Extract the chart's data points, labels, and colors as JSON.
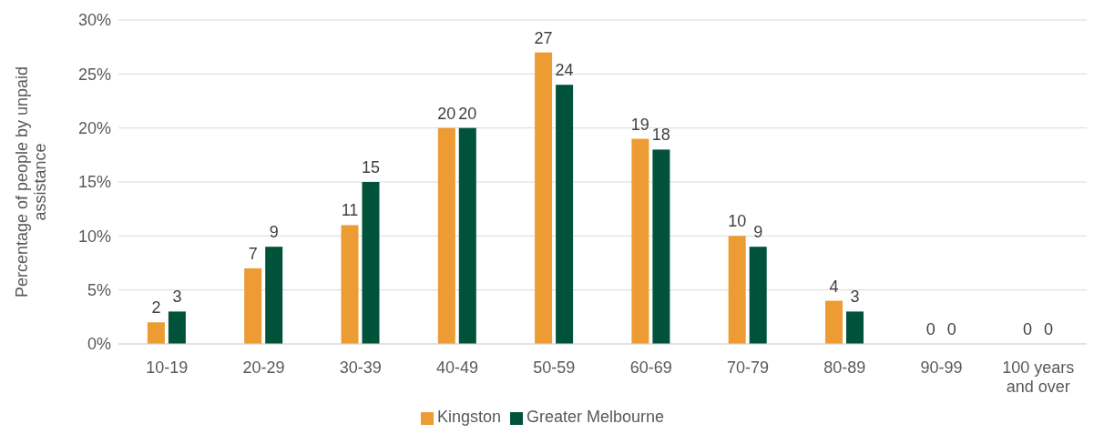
{
  "chart_data": {
    "type": "bar",
    "ylabel": "Percentage of people by unpaid assistance",
    "categories": [
      "10-19",
      "20-29",
      "30-39",
      "40-49",
      "50-59",
      "60-69",
      "70-79",
      "80-89",
      "90-99",
      "100 years and over"
    ],
    "series": [
      {
        "name": "Kingston",
        "color": "#ed9b33",
        "values": [
          2,
          7,
          11,
          20,
          27,
          19,
          10,
          4,
          0,
          0
        ]
      },
      {
        "name": "Greater Melbourne",
        "color": "#00533a",
        "values": [
          3,
          9,
          15,
          20,
          24,
          18,
          9,
          3,
          0,
          0
        ]
      }
    ],
    "ylim": [
      0,
      30
    ],
    "yticks": [
      {
        "value": 0,
        "label": "0%"
      },
      {
        "value": 5,
        "label": "5%"
      },
      {
        "value": 10,
        "label": "10%"
      },
      {
        "value": 15,
        "label": "15%"
      },
      {
        "value": 20,
        "label": "20%"
      },
      {
        "value": 25,
        "label": "25%"
      },
      {
        "value": 30,
        "label": "30%"
      }
    ],
    "grid": "y",
    "legend": "bottom",
    "data_labels": true
  }
}
